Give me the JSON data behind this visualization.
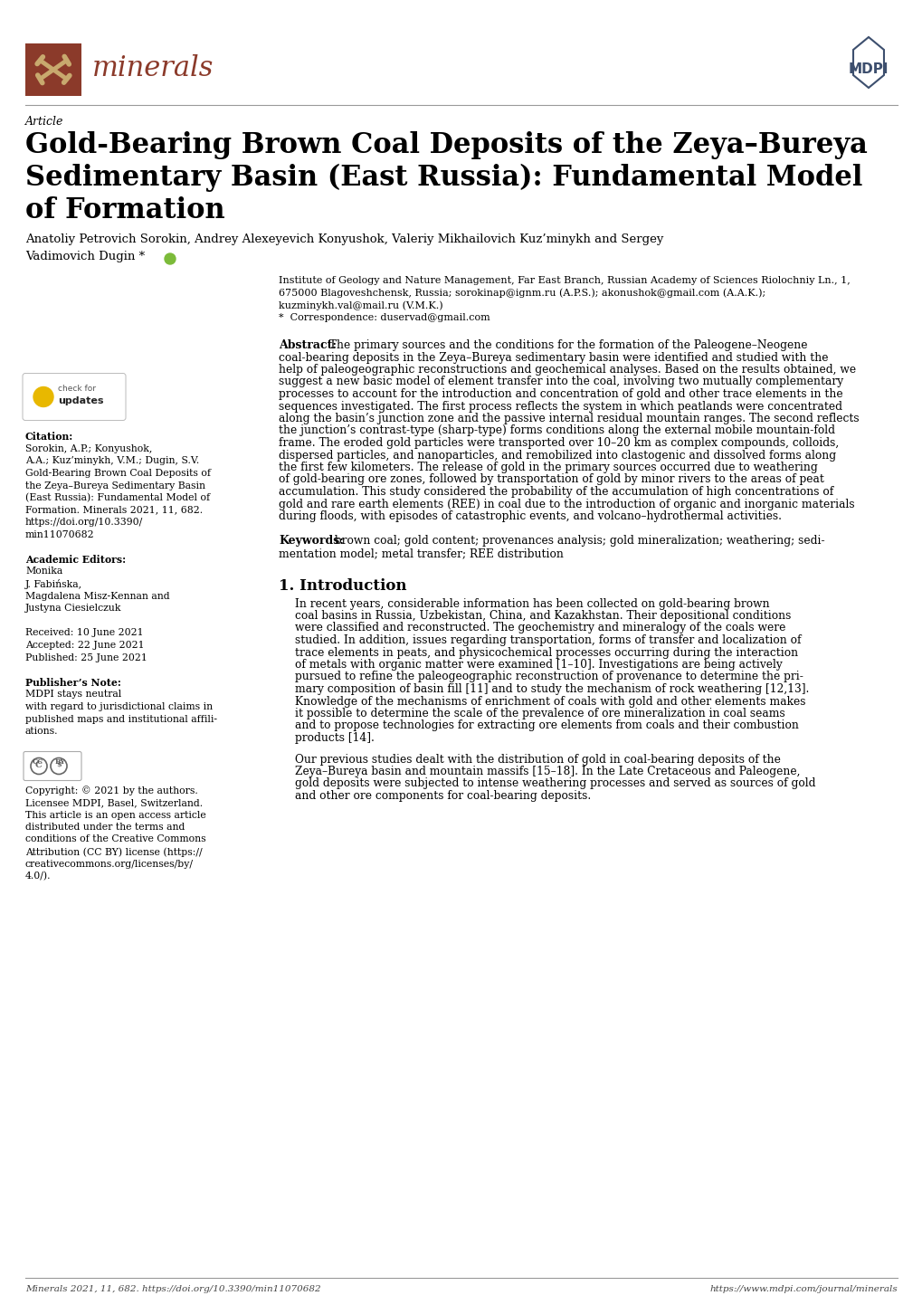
{
  "page_bg": "#ffffff",
  "line_color": "#999999",
  "journal_name_color": "#8B3A2A",
  "logo_bg_color": "#8B3A2A",
  "logo_icon_color": "#C8A96E",
  "mdpi_color": "#3D4F6E",
  "article_label": "Article",
  "title_line1": "Gold-Bearing Brown Coal Deposits of the Zeya–Bureya",
  "title_line2": "Sedimentary Basin (East Russia): Fundamental Model",
  "title_line3": "of Formation",
  "authors_line1": "Anatoliy Petrovich Sorokin, Andrey Alexeyevich Konyushok, Valeriy Mikhailovich Kuz’minykh and Sergey",
  "authors_line2": "Vadimovich Dugin *",
  "affiliation_lines": [
    "Institute of Geology and Nature Management, Far East Branch, Russian Academy of Sciences Riolochniy Ln., 1,",
    "675000 Blagoveshchensk, Russia; sorokinap@ignm.ru (A.P.S.); akonushok@gmail.com (A.A.K.);",
    "kuzminykh.val@mail.ru (V.M.K.)",
    "*  Correspondence: duservad@gmail.com"
  ],
  "abstract_lines": [
    "The primary sources and the conditions for the formation of the Paleogene–Neogene",
    "coal-bearing deposits in the Zeya–Bureya sedimentary basin were identified and studied with the",
    "help of paleogeographic reconstructions and geochemical analyses. Based on the results obtained, we",
    "suggest a new basic model of element transfer into the coal, involving two mutually complementary",
    "processes to account for the introduction and concentration of gold and other trace elements in the",
    "sequences investigated. The first process reflects the system in which peatlands were concentrated",
    "along the basin’s junction zone and the passive internal residual mountain ranges. The second reflects",
    "the junction’s contrast-type (sharp-type) forms conditions along the external mobile mountain-fold",
    "frame. The eroded gold particles were transported over 10–20 km as complex compounds, colloids,",
    "dispersed particles, and nanoparticles, and remobilized into clastogenic and dissolved forms along",
    "the first few kilometers. The release of gold in the primary sources occurred due to weathering",
    "of gold-bearing ore zones, followed by transportation of gold by minor rivers to the areas of peat",
    "accumulation. This study considered the probability of the accumulation of high concentrations of",
    "gold and rare earth elements (REE) in coal due to the introduction of organic and inorganic materials",
    "during floods, with episodes of catastrophic events, and volcano–hydrothermal activities."
  ],
  "keywords_line1": "brown coal; gold content; provenances analysis; gold mineralization; weathering; sedi-",
  "keywords_line2": "mentation model; metal transfer; REE distribution",
  "section_title": "1. Introduction",
  "intro_p1_lines": [
    "In recent years, considerable information has been collected on gold-bearing brown",
    "coal basins in Russia, Uzbekistan, China, and Kazakhstan. Their depositional conditions",
    "were classified and reconstructed. The geochemistry and mineralogy of the coals were",
    "studied. In addition, issues regarding transportation, forms of transfer and localization of",
    "trace elements in peats, and physicochemical processes occurring during the interaction",
    "of metals with organic matter were examined [1–10]. Investigations are being actively",
    "pursued to refine the paleogeographic reconstruction of provenance to determine the pri-",
    "mary composition of basin fill [11] and to study the mechanism of rock weathering [12,13].",
    "Knowledge of the mechanisms of enrichment of coals with gold and other elements makes",
    "it possible to determine the scale of the prevalence of ore mineralization in coal seams",
    "and to propose technologies for extracting ore elements from coals and their combustion",
    "products [14]."
  ],
  "intro_p2_lines": [
    "Our previous studies dealt with the distribution of gold in coal-bearing deposits of the",
    "Zeya–Bureya basin and mountain massifs [15–18]. In the Late Cretaceous and Paleogene,",
    "gold deposits were subjected to intense weathering processes and served as sources of gold",
    "and other ore components for coal-bearing deposits."
  ],
  "citation_lines": [
    "Sorokin, A.P.; Konyushok,",
    "A.A.; Kuz’minykh, V.M.; Dugin, S.V.",
    "Gold-Bearing Brown Coal Deposits of",
    "the Zeya–Bureya Sedimentary Basin",
    "(East Russia): Fundamental Model of",
    "Formation. Minerals 2021, 11, 682.",
    "https://doi.org/10.3390/",
    "min11070682"
  ],
  "editor_lines": [
    "Monika",
    "J. Fabińska,",
    "Magdalena Misz-Kennan and",
    "Justyna Ciesielczuk"
  ],
  "received_text": "Received: 10 June 2021",
  "accepted_text": "Accepted: 22 June 2021",
  "published_text": "Published: 25 June 2021",
  "publisher_lines": [
    "MDPI stays neutral",
    "with regard to jurisdictional claims in",
    "published maps and institutional affili-",
    "ations."
  ],
  "copyright_lines": [
    "Copyright: © 2021 by the authors.",
    "Licensee MDPI, Basel, Switzerland.",
    "This article is an open access article",
    "distributed under the terms and",
    "conditions of the Creative Commons",
    "Attribution (CC BY) license (https://",
    "creativecommons.org/licenses/by/",
    "4.0/)."
  ],
  "footer_left": "Minerals 2021, 11, 682. https://doi.org/10.3390/min11070682",
  "footer_right": "https://www.mdpi.com/journal/minerals"
}
